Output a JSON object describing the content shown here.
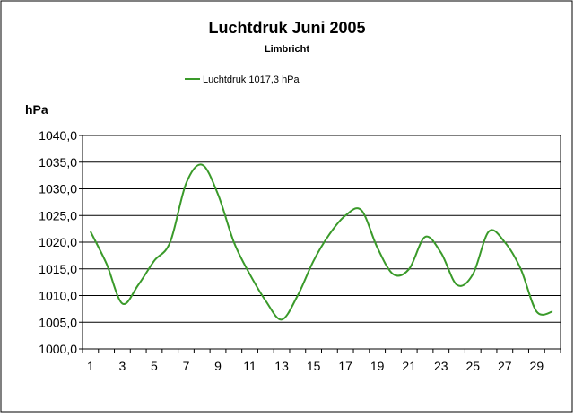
{
  "chart_data": {
    "type": "line",
    "title": "Luchtdruk Juni 2005",
    "subtitle": "Limbricht",
    "ylabel": "hPa",
    "xlabel": "",
    "legend": {
      "placement": "top-left",
      "entry": "Luchtdruk 1017,3 hPa"
    },
    "grid": true,
    "xlim": [
      1,
      30
    ],
    "ylim": [
      1000,
      1040
    ],
    "x_tick_labels": [
      "1",
      "3",
      "5",
      "7",
      "9",
      "11",
      "13",
      "15",
      "17",
      "19",
      "21",
      "23",
      "25",
      "27",
      "29"
    ],
    "y_tick_labels": [
      "1000,0",
      "1005,0",
      "1010,0",
      "1015,0",
      "1020,0",
      "1025,0",
      "1030,0",
      "1035,0",
      "1040,0"
    ],
    "series": [
      {
        "name": "Luchtdruk 1017,3 hPa",
        "color": "#3a9a2a",
        "x": [
          1,
          2,
          3,
          4,
          5,
          6,
          7,
          8,
          9,
          10,
          11,
          12,
          13,
          14,
          15,
          16,
          17,
          18,
          19,
          20,
          21,
          22,
          23,
          24,
          25,
          26,
          27,
          28,
          29,
          30
        ],
        "values": [
          1022.0,
          1016.0,
          1008.5,
          1012.0,
          1016.5,
          1020.0,
          1031.0,
          1034.5,
          1029.0,
          1020.0,
          1014.0,
          1009.0,
          1005.5,
          1010.0,
          1016.5,
          1021.5,
          1025.0,
          1026.0,
          1019.0,
          1014.0,
          1015.0,
          1021.0,
          1018.0,
          1012.0,
          1014.0,
          1022.0,
          1020.0,
          1015.0,
          1007.0,
          1007.0
        ]
      }
    ]
  }
}
